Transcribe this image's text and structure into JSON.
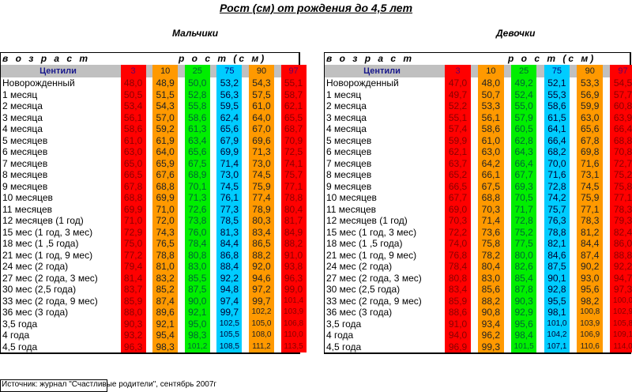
{
  "title": "Рост (см) от рождения до 4,5 лет",
  "age_header": "в о з р а с т",
  "height_header": "р о с т (с м)",
  "centiles_label": "Центили",
  "centiles": [
    "3",
    "10",
    "25",
    "75",
    "90",
    "97"
  ],
  "source": "Источник: журнал \"Счастливые родители\", сентябрь 2007г",
  "colors": {
    "red": "#ff0000",
    "orange": "#ff9900",
    "green": "#00ee00",
    "cyan": "#00ccff",
    "header_gray": "#c0c0c0"
  },
  "ages": [
    "Новорожденный",
    "1 месяц",
    "2 месяца",
    "3 месяца",
    "4 месяца",
    "5 месяцев",
    "6 месяцев",
    "7 месяцев",
    "8 месяцев",
    "9 месяцев",
    "10 месяцев",
    "11 месяцев",
    "12 месяцев (1 год)",
    "15 мес (1 год, 3 мес)",
    "18 мес (1 ,5 года)",
    "21 мес (1 год, 9 мес)",
    "24 мес (2 года)",
    "27 мес (2 года, 3 мес)",
    "30 мес (2,5 года)",
    "33 мес (2 года, 9 мес)",
    "36 мес (3 года)",
    "3,5 года",
    "4 года",
    "4,5 года"
  ],
  "boys": {
    "label": "Мальчики",
    "rows": [
      [
        "48,0",
        "48,9",
        "50,0",
        "53,2",
        "54,3",
        "55,1"
      ],
      [
        "50,5",
        "51,5",
        "52,8",
        "56,3",
        "57,5",
        "58,7"
      ],
      [
        "53,4",
        "54,3",
        "55,8",
        "59,5",
        "61,0",
        "62,1"
      ],
      [
        "56,1",
        "57,0",
        "58,6",
        "62,4",
        "64,0",
        "65,5"
      ],
      [
        "58,6",
        "59,2",
        "61,3",
        "65,6",
        "67,0",
        "68,7"
      ],
      [
        "61,0",
        "61,9",
        "63,4",
        "67,9",
        "69,6",
        "70,9"
      ],
      [
        "63,0",
        "64,0",
        "65,6",
        "69,9",
        "71,3",
        "72,5"
      ],
      [
        "65,0",
        "65,9",
        "67,5",
        "71,4",
        "73,0",
        "74,1"
      ],
      [
        "66,5",
        "67,6",
        "68,9",
        "73,0",
        "74,5",
        "75,7"
      ],
      [
        "67,8",
        "68,8",
        "70,1",
        "74,5",
        "75,9",
        "77,1"
      ],
      [
        "68,8",
        "69,9",
        "71,3",
        "76,1",
        "77,4",
        "78,8"
      ],
      [
        "69,9",
        "71,0",
        "72,6",
        "77,3",
        "78,9",
        "80,4"
      ],
      [
        "71,0",
        "72,0",
        "73,8",
        "78,5",
        "80,3",
        "81,7"
      ],
      [
        "72,9",
        "74,3",
        "76,0",
        "81,3",
        "83,4",
        "84,9"
      ],
      [
        "75,0",
        "76,5",
        "78,4",
        "84,4",
        "86,5",
        "88,2"
      ],
      [
        "77,2",
        "78,8",
        "80,8",
        "86,8",
        "88,2",
        "91,0"
      ],
      [
        "79,4",
        "81,0",
        "83,0",
        "88,4",
        "92,0",
        "93,8"
      ],
      [
        "81,4",
        "83,2",
        "85,5",
        "92,2",
        "94,6",
        "96,3"
      ],
      [
        "83,7",
        "85,2",
        "87,5",
        "94,8",
        "97,2",
        "99,0"
      ],
      [
        "85,9",
        "87,4",
        "90,0",
        "97,4",
        "99,7",
        "101,4"
      ],
      [
        "88,0",
        "89,6",
        "92,1",
        "99,7",
        "102,2",
        "103,9"
      ],
      [
        "90,3",
        "92,1",
        "95,0",
        "102,5",
        "105,0",
        "106,8"
      ],
      [
        "93,2",
        "95,4",
        "98,3",
        "105,5",
        "108,0",
        "110,0"
      ],
      [
        "96,3",
        "98,3",
        "101,2",
        "108,5",
        "111,2",
        "113,5"
      ]
    ]
  },
  "girls": {
    "label": "Девочки",
    "rows": [
      [
        "47,0",
        "48,0",
        "49,2",
        "52,1",
        "53,3",
        "54,5"
      ],
      [
        "49,7",
        "50,7",
        "52,4",
        "55,3",
        "56,9",
        "57,7"
      ],
      [
        "52,2",
        "53,3",
        "55,0",
        "58,6",
        "59,9",
        "60,8"
      ],
      [
        "55,1",
        "56,1",
        "57,9",
        "61,5",
        "63,0",
        "63,9"
      ],
      [
        "57,4",
        "58,6",
        "60,5",
        "64,1",
        "65,6",
        "66,4"
      ],
      [
        "59,9",
        "61,0",
        "62,8",
        "66,4",
        "67,8",
        "68,8"
      ],
      [
        "62,1",
        "63,0",
        "64,3",
        "68,2",
        "69,8",
        "70,8"
      ],
      [
        "63,7",
        "64,2",
        "66,4",
        "70,0",
        "71,6",
        "72,7"
      ],
      [
        "65,2",
        "66,1",
        "67,7",
        "71,6",
        "73,1",
        "75,2"
      ],
      [
        "66,5",
        "67,5",
        "69,3",
        "72,8",
        "74,5",
        "75,8"
      ],
      [
        "67,7",
        "68,8",
        "70,5",
        "74,2",
        "75,9",
        "77,1"
      ],
      [
        "69,0",
        "70,3",
        "71,7",
        "75,7",
        "77,1",
        "78,3"
      ],
      [
        "70,3",
        "71,4",
        "72,8",
        "76,3",
        "78,3",
        "79,3"
      ],
      [
        "72,2",
        "73,6",
        "75,2",
        "78,8",
        "81,2",
        "82,4"
      ],
      [
        "74,0",
        "75,8",
        "77,5",
        "82,1",
        "84,4",
        "86,0"
      ],
      [
        "76,8",
        "78,2",
        "80,0",
        "84,6",
        "87,4",
        "88,8"
      ],
      [
        "78,4",
        "80,4",
        "82,6",
        "87,5",
        "90,2",
        "92,2"
      ],
      [
        "80,8",
        "83,0",
        "85,4",
        "90,1",
        "93,0",
        "94,7"
      ],
      [
        "83,4",
        "85,6",
        "87,8",
        "92,8",
        "95,6",
        "97,3"
      ],
      [
        "85,9",
        "88,2",
        "90,3",
        "95,5",
        "98,2",
        "100,0"
      ],
      [
        "88,6",
        "90,8",
        "92,9",
        "98,1",
        "100,8",
        "102,9"
      ],
      [
        "91,0",
        "93,4",
        "95,6",
        "101,0",
        "103,9",
        "105,8"
      ],
      [
        "94,0",
        "96,2",
        "98,4",
        "104,2",
        "106,9",
        "109,1"
      ],
      [
        "96,9",
        "99,3",
        "101,5",
        "107,1",
        "110,6",
        "114,0"
      ]
    ]
  }
}
